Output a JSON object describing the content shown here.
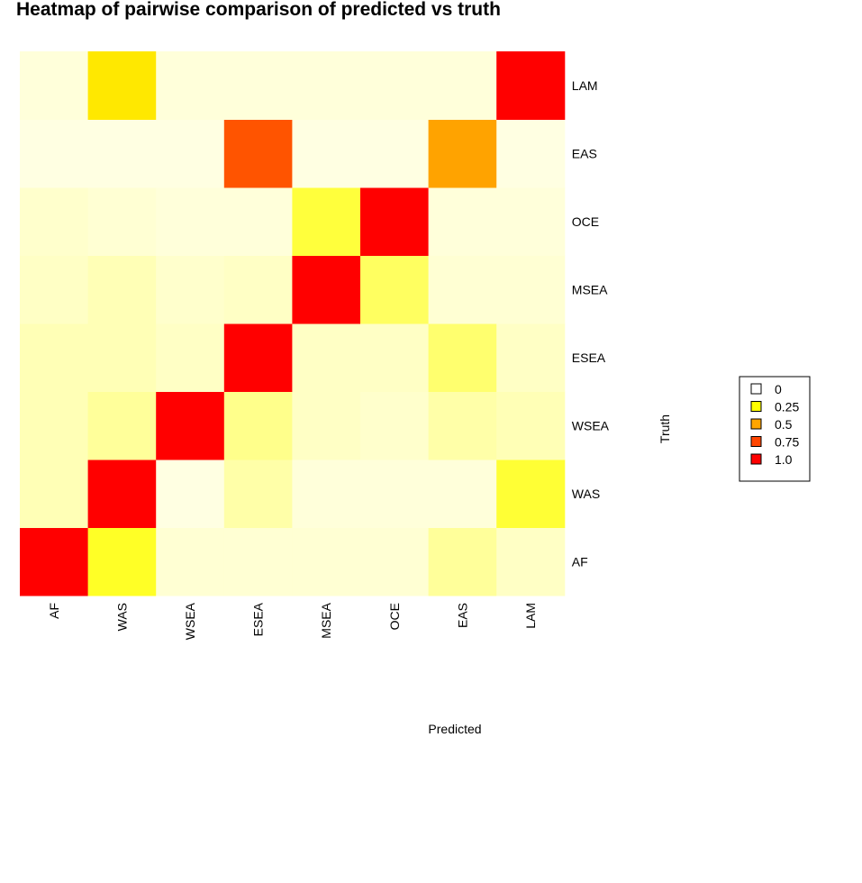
{
  "chart_data": {
    "type": "heatmap",
    "title": "Heatmap of pairwise comparison of predicted vs truth",
    "xlabel": "Predicted",
    "ylabel": "Truth",
    "x_categories": [
      "AF",
      "WAS",
      "WSEA",
      "ESEA",
      "MSEA",
      "OCE",
      "EAS",
      "LAM"
    ],
    "y_categories": [
      "AF",
      "WAS",
      "WSEA",
      "ESEA",
      "MSEA",
      "OCE",
      "EAS",
      "LAM"
    ],
    "values": [
      [
        1.0,
        0.28,
        0.04,
        0.04,
        0.04,
        0.04,
        0.12,
        0.06
      ],
      [
        0.08,
        1.0,
        0.02,
        0.1,
        0.03,
        0.03,
        0.03,
        0.26
      ],
      [
        0.08,
        0.12,
        1.0,
        0.14,
        0.06,
        0.05,
        0.1,
        0.08
      ],
      [
        0.08,
        0.08,
        0.06,
        1.0,
        0.06,
        0.06,
        0.18,
        0.06
      ],
      [
        0.06,
        0.08,
        0.05,
        0.06,
        1.0,
        0.2,
        0.04,
        0.04
      ],
      [
        0.05,
        0.04,
        0.03,
        0.03,
        0.25,
        1.0,
        0.03,
        0.03
      ],
      [
        0.02,
        0.02,
        0.02,
        0.8,
        0.02,
        0.02,
        0.6,
        0.02
      ],
      [
        0.03,
        0.4,
        0.03,
        0.03,
        0.03,
        0.03,
        0.03,
        1.0
      ]
    ],
    "legend": {
      "entries": [
        "0",
        "0.25",
        "0.5",
        "0.75",
        "1.0"
      ],
      "colors": [
        "#ffffff",
        "#ffff00",
        "#ffa500",
        "#ff4500",
        "#ff0000"
      ]
    },
    "color_scale": [
      "#fffff0",
      "#ffff00",
      "#ff8c00",
      "#ff0000"
    ]
  }
}
